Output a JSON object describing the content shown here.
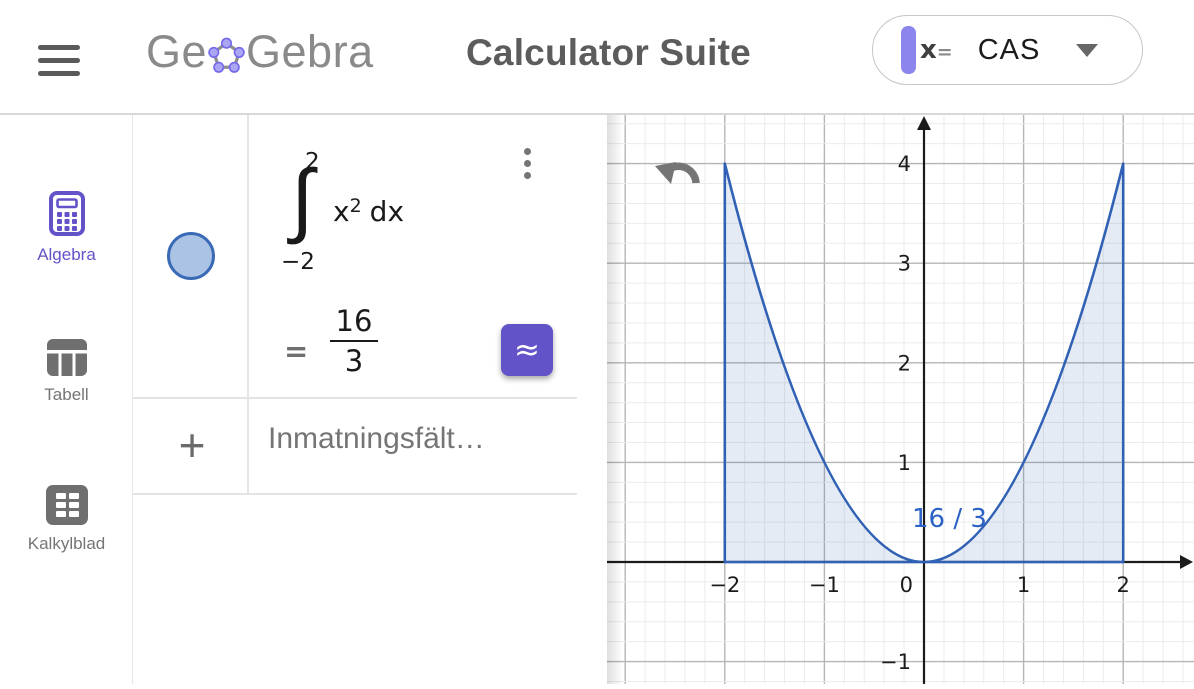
{
  "header": {
    "menu_icon": "hamburger-icon",
    "logo_prefix": "Ge",
    "logo_suffix": "Gebra",
    "app_title": "Calculator Suite",
    "mode_selector": {
      "icon_text_x": "x",
      "icon_text_eq": "=",
      "value": "CAS"
    }
  },
  "sidebar": {
    "items": [
      {
        "id": "algebra",
        "label": "Algebra",
        "icon": "calculator-icon",
        "active": true
      },
      {
        "id": "tabell",
        "label": "Tabell",
        "icon": "table-icon",
        "active": false
      },
      {
        "id": "kalkylblad",
        "label": "Kalkylblad",
        "icon": "spreadsheet-icon",
        "active": false
      }
    ]
  },
  "cas_view": {
    "row": {
      "expression": {
        "integral_sign": "∫",
        "upper_bound": "2",
        "lower_bound": "−2",
        "integrand_base": "x",
        "integrand_exponent": "2",
        "differential": "dx"
      },
      "result": {
        "equals_sign": "=",
        "numerator": "16",
        "denominator": "3"
      },
      "approx_button_label": "≈"
    },
    "new_row_plus": "+",
    "input_placeholder": "Inmatningsfält…"
  },
  "graph_view": {
    "undo_icon": "undo-arrow-icon",
    "chart_data": {
      "type": "area",
      "function": "y = x^2",
      "integral": {
        "lower": -2,
        "upper": 2,
        "result_label": "16 / 3"
      },
      "x_ticks": [
        -2,
        -1,
        0,
        1,
        2
      ],
      "x_tick_labels": [
        "−2",
        "−1",
        "0",
        "1",
        "2"
      ],
      "y_ticks": [
        -1,
        1,
        2,
        3,
        4
      ],
      "y_tick_labels": [
        "−1",
        "1",
        "2",
        "3",
        "4"
      ],
      "xlim": [
        -3.18,
        2.71
      ],
      "ylim": [
        -1.22,
        4.49
      ],
      "grid": true,
      "minor_per_major": 5,
      "curve_color": "#3161b4",
      "fill_color": "rgba(49,97,180,0.13)",
      "label_color": "#2b62c6",
      "axis_color": "#1b1b1b",
      "major_grid_color": "#b5b5b5",
      "minor_grid_color": "#ebebeb"
    }
  },
  "colors": {
    "accent_purple": "#6253c9",
    "object_blue": "#3161b4",
    "marble_fill": "#abc4e6"
  }
}
